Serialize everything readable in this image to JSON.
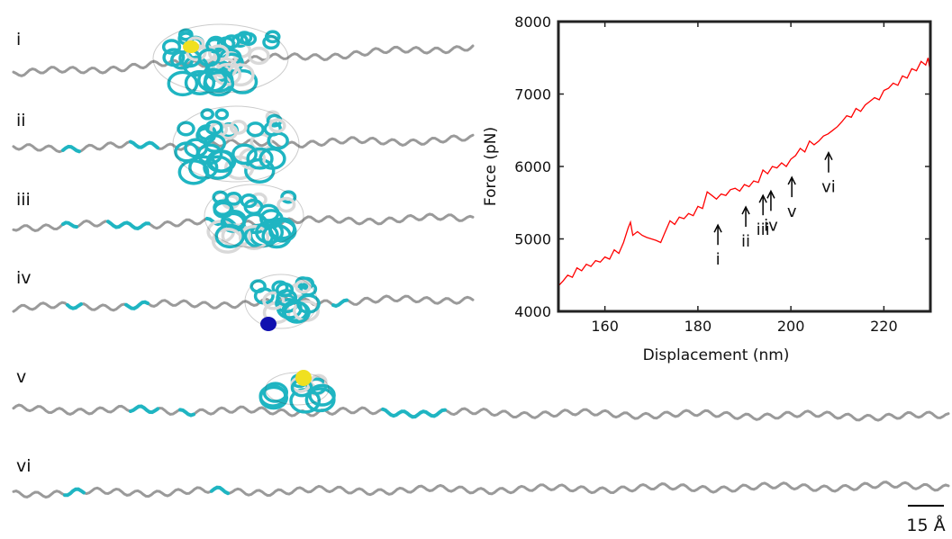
{
  "panels": {
    "labels": [
      "i",
      "ii",
      "iii",
      "iv",
      "v",
      "vi"
    ]
  },
  "scale_bar": {
    "label": "15 Å"
  },
  "chart_data": {
    "type": "line",
    "xlabel": "Displacement (nm)",
    "ylabel": "Force (pN)",
    "xlim": [
      150,
      230
    ],
    "xticks": [
      160,
      180,
      200,
      220
    ],
    "ylim": [
      4000,
      8000
    ],
    "yticks": [
      4000,
      5000,
      6000,
      7000,
      8000
    ],
    "x": [
      150,
      151,
      152,
      153,
      154,
      155,
      156,
      157,
      158,
      159,
      160,
      161,
      162,
      163,
      164,
      165,
      165.5,
      166,
      167,
      168,
      169,
      170,
      171,
      172,
      173,
      174,
      175,
      176,
      177,
      178,
      179,
      180,
      181,
      182,
      183,
      184,
      185,
      186,
      187,
      188,
      189,
      190,
      191,
      192,
      193,
      194,
      195,
      196,
      197,
      198,
      199,
      200,
      201,
      202,
      203,
      204,
      205,
      206,
      207,
      208,
      209,
      210,
      211,
      212,
      213,
      214,
      215,
      216,
      217,
      218,
      219,
      220,
      221,
      222,
      223,
      224,
      225,
      226,
      227,
      228,
      229,
      229.5,
      230
    ],
    "series": [
      {
        "color": "#ff0000",
        "values": [
          4350,
          4420,
          4500,
          4470,
          4600,
          4560,
          4650,
          4620,
          4700,
          4680,
          4750,
          4720,
          4850,
          4800,
          4950,
          5150,
          5230,
          5050,
          5100,
          5050,
          5020,
          5000,
          4980,
          4950,
          5100,
          5250,
          5200,
          5300,
          5280,
          5350,
          5320,
          5450,
          5420,
          5650,
          5600,
          5550,
          5620,
          5600,
          5680,
          5700,
          5660,
          5750,
          5720,
          5800,
          5780,
          5950,
          5900,
          6000,
          5980,
          6050,
          6000,
          6100,
          6150,
          6250,
          6200,
          6350,
          6300,
          6350,
          6420,
          6450,
          6500,
          6550,
          6620,
          6700,
          6680,
          6800,
          6760,
          6850,
          6900,
          6950,
          6920,
          7050,
          7080,
          7150,
          7120,
          7250,
          7220,
          7350,
          7320,
          7450,
          7400,
          7500,
          7300
        ]
      }
    ],
    "annotations": [
      {
        "label": "i",
        "x": 184.3,
        "y": 5190
      },
      {
        "label": "ii",
        "x": 190.3,
        "y": 5440
      },
      {
        "label": "iii",
        "x": 194,
        "y": 5600
      },
      {
        "label": "iv",
        "x": 195.7,
        "y": 5660
      },
      {
        "label": "v",
        "x": 200.2,
        "y": 5850
      },
      {
        "label": "vi",
        "x": 208.1,
        "y": 6190
      }
    ]
  }
}
